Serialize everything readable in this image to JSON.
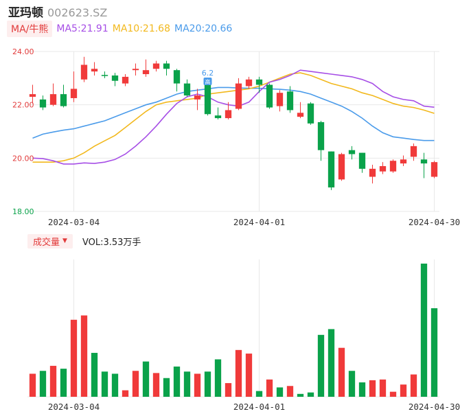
{
  "header": {
    "name": "亚玛顿",
    "code": "002623.SZ"
  },
  "ma_legend": {
    "tab": "MA/牛熊",
    "ma5": "MA5:21.91",
    "ma10": "MA10:21.68",
    "ma20": "MA20:20.66"
  },
  "volume_legend": {
    "tab": "成交量",
    "text": "VOL:3.53万手"
  },
  "colors": {
    "up": "#f03a3a",
    "down": "#0aa24a",
    "ma5": "#a64ee6",
    "ma10": "#f2b81c",
    "ma20": "#4a9bea",
    "grid": "#e8e8e8"
  },
  "chart_data": [
    {
      "type": "candlestick",
      "title": "",
      "ylim": [
        18,
        24
      ],
      "yticks": [
        "24.00",
        "22.00",
        "20.00",
        "18.00"
      ],
      "x_tick_labels": [
        "2024-03-04",
        "2024-04-01",
        "2024-04-30"
      ],
      "x_tick_index": [
        4,
        22,
        39
      ],
      "candles": [
        {
          "o": 22.3,
          "c": 22.4,
          "h": 22.75,
          "l": 22.05
        },
        {
          "o": 22.2,
          "c": 21.9,
          "h": 22.35,
          "l": 21.8
        },
        {
          "o": 22.0,
          "c": 22.4,
          "h": 22.8,
          "l": 21.95
        },
        {
          "o": 22.4,
          "c": 21.95,
          "h": 22.75,
          "l": 21.9
        },
        {
          "o": 22.25,
          "c": 22.6,
          "h": 23.25,
          "l": 22.1
        },
        {
          "o": 22.95,
          "c": 23.5,
          "h": 23.8,
          "l": 22.85
        },
        {
          "o": 23.25,
          "c": 23.35,
          "h": 23.6,
          "l": 23.1
        },
        {
          "o": 23.12,
          "c": 23.08,
          "h": 23.25,
          "l": 23.0
        },
        {
          "o": 23.1,
          "c": 22.9,
          "h": 23.2,
          "l": 22.7
        },
        {
          "o": 22.8,
          "c": 23.05,
          "h": 23.15,
          "l": 22.7
        },
        {
          "o": 23.3,
          "c": 23.35,
          "h": 23.55,
          "l": 23.1
        },
        {
          "o": 23.15,
          "c": 23.3,
          "h": 23.7,
          "l": 23.05
        },
        {
          "o": 23.35,
          "c": 23.55,
          "h": 23.65,
          "l": 23.25
        },
        {
          "o": 23.55,
          "c": 23.35,
          "h": 23.65,
          "l": 23.1
        },
        {
          "o": 23.3,
          "c": 22.8,
          "h": 23.35,
          "l": 22.5
        },
        {
          "o": 22.8,
          "c": 22.35,
          "h": 22.95,
          "l": 22.3
        },
        {
          "o": 22.2,
          "c": 22.35,
          "h": 22.6,
          "l": 21.8
        },
        {
          "o": 23.0,
          "c": 21.65,
          "h": 23.0,
          "l": 21.6
        },
        {
          "o": 21.6,
          "c": 21.5,
          "h": 21.9,
          "l": 21.45
        },
        {
          "o": 21.5,
          "c": 21.8,
          "h": 22.1,
          "l": 21.45
        },
        {
          "o": 21.85,
          "c": 22.8,
          "h": 23.0,
          "l": 21.8
        },
        {
          "o": 22.7,
          "c": 22.95,
          "h": 23.05,
          "l": 22.6
        },
        {
          "o": 22.95,
          "c": 22.75,
          "h": 23.05,
          "l": 22.45
        },
        {
          "o": 22.75,
          "c": 21.9,
          "h": 22.8,
          "l": 21.85
        },
        {
          "o": 21.95,
          "c": 22.45,
          "h": 22.55,
          "l": 21.75
        },
        {
          "o": 22.5,
          "c": 21.8,
          "h": 22.7,
          "l": 21.7
        },
        {
          "o": 21.55,
          "c": 21.7,
          "h": 22.1,
          "l": 21.5
        },
        {
          "o": 22.05,
          "c": 21.3,
          "h": 22.1,
          "l": 21.25
        },
        {
          "o": 21.35,
          "c": 20.3,
          "h": 21.4,
          "l": 19.9
        },
        {
          "o": 20.25,
          "c": 18.9,
          "h": 20.25,
          "l": 18.8
        },
        {
          "o": 19.2,
          "c": 20.15,
          "h": 20.2,
          "l": 19.15
        },
        {
          "o": 20.3,
          "c": 20.15,
          "h": 20.45,
          "l": 19.95
        },
        {
          "o": 20.2,
          "c": 19.6,
          "h": 20.2,
          "l": 19.45
        },
        {
          "o": 19.3,
          "c": 19.6,
          "h": 19.75,
          "l": 19.05
        },
        {
          "o": 19.5,
          "c": 19.7,
          "h": 19.85,
          "l": 19.4
        },
        {
          "o": 19.5,
          "c": 19.9,
          "h": 19.95,
          "l": 19.45
        },
        {
          "o": 19.8,
          "c": 19.95,
          "h": 20.1,
          "l": 19.7
        },
        {
          "o": 20.05,
          "c": 20.45,
          "h": 20.55,
          "l": 19.9
        },
        {
          "o": 19.95,
          "c": 19.8,
          "h": 20.2,
          "l": 19.25
        },
        {
          "o": 19.3,
          "c": 19.85,
          "h": 19.9,
          "l": 19.25
        }
      ],
      "ma5": [
        20.0,
        19.98,
        19.9,
        19.78,
        19.78,
        19.82,
        19.8,
        19.85,
        19.95,
        20.15,
        20.45,
        20.8,
        21.2,
        21.65,
        22.05,
        22.3,
        22.4,
        22.3,
        22.1,
        22.0,
        21.95,
        22.1,
        22.5,
        22.85,
        22.95,
        23.1,
        23.3,
        23.25,
        23.2,
        23.15,
        23.1,
        23.05,
        22.95,
        22.8,
        22.5,
        22.3,
        22.2,
        22.15,
        21.95,
        21.91
      ],
      "ma10": [
        19.85,
        19.85,
        19.85,
        19.9,
        20.0,
        20.2,
        20.45,
        20.65,
        20.85,
        21.15,
        21.45,
        21.75,
        22.0,
        22.1,
        22.15,
        22.2,
        22.25,
        22.4,
        22.45,
        22.5,
        22.55,
        22.6,
        22.7,
        22.85,
        23.0,
        23.15,
        23.2,
        23.1,
        22.95,
        22.8,
        22.7,
        22.6,
        22.45,
        22.35,
        22.2,
        22.05,
        21.95,
        21.9,
        21.8,
        21.68
      ],
      "ma20": [
        20.75,
        20.9,
        20.98,
        21.05,
        21.1,
        21.2,
        21.3,
        21.4,
        21.55,
        21.7,
        21.85,
        22.0,
        22.1,
        22.25,
        22.4,
        22.5,
        22.55,
        22.6,
        22.65,
        22.65,
        22.63,
        22.62,
        22.62,
        22.6,
        22.58,
        22.55,
        22.5,
        22.4,
        22.25,
        22.1,
        21.95,
        21.75,
        21.5,
        21.2,
        20.95,
        20.8,
        20.75,
        20.7,
        20.66,
        20.66
      ],
      "annotations": [
        {
          "index": 17,
          "text": "6.2"
        },
        {
          "index": 17,
          "text": "高"
        }
      ]
    },
    {
      "type": "bar",
      "title": "",
      "series": [
        {
          "values": [
            3.2,
            3.6,
            4.3,
            3.9,
            10.7,
            11.3,
            6.1,
            3.5,
            3.2,
            0.9,
            3.6,
            4.9,
            3.3,
            2.6,
            4.2,
            3.5,
            3.2,
            3.5,
            5.2,
            1.9,
            6.5,
            6.0,
            0.8,
            2.4,
            1.3,
            1.5,
            0.4,
            0.6,
            8.6,
            9.4,
            6.8,
            3.6,
            2.0,
            2.3,
            2.4,
            0.7,
            1.7,
            3.1,
            18.5,
            12.3
          ]
        }
      ],
      "up": [
        true,
        false,
        true,
        false,
        true,
        true,
        false,
        false,
        false,
        true,
        true,
        false,
        true,
        false,
        false,
        false,
        true,
        false,
        false,
        true,
        true,
        true,
        false,
        true,
        false,
        true,
        false,
        false,
        false,
        false,
        true,
        false,
        false,
        true,
        true,
        true,
        true,
        true,
        false,
        false
      ]
    }
  ]
}
